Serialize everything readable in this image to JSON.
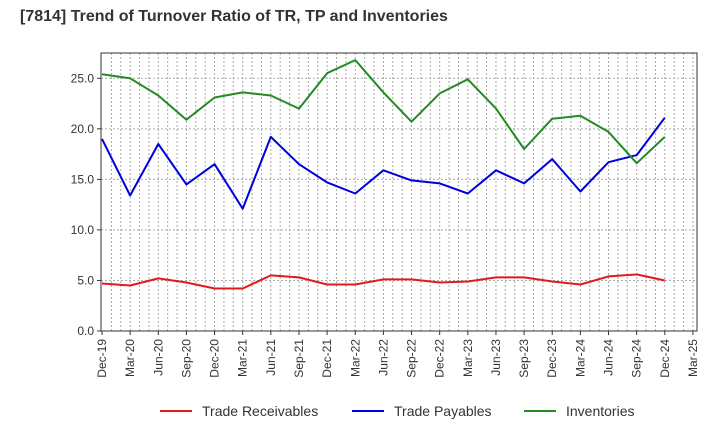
{
  "chart_data": {
    "type": "line",
    "title": "[7814]  Trend of Turnover Ratio of TR, TP and Inventories",
    "xlabel": "",
    "ylabel": "",
    "ylim": [
      0,
      27.5
    ],
    "yticks": [
      "0.0",
      "5.0",
      "10.0",
      "15.0",
      "20.0",
      "25.0"
    ],
    "grid": true,
    "legend": "bottom",
    "x": [
      "Dec-19",
      "Mar-20",
      "Jun-20",
      "Sep-20",
      "Dec-20",
      "Mar-21",
      "Jun-21",
      "Sep-21",
      "Dec-21",
      "Mar-22",
      "Jun-22",
      "Sep-22",
      "Dec-22",
      "Mar-23",
      "Jun-23",
      "Sep-23",
      "Dec-23",
      "Mar-24",
      "Jun-24",
      "Sep-24",
      "Dec-24",
      "Mar-25"
    ],
    "series": [
      {
        "name": "Trade Receivables",
        "color": "#e31a1c",
        "values": [
          4.7,
          4.5,
          5.2,
          4.8,
          4.2,
          4.2,
          5.5,
          5.3,
          4.6,
          4.6,
          5.1,
          5.1,
          4.8,
          4.9,
          5.3,
          5.3,
          4.9,
          4.6,
          5.4,
          5.6,
          5.0,
          null
        ]
      },
      {
        "name": "Trade Payables",
        "color": "#0000dd",
        "values": [
          19.0,
          13.4,
          18.5,
          14.5,
          16.5,
          12.1,
          19.2,
          16.5,
          14.7,
          13.6,
          15.9,
          14.9,
          14.6,
          13.6,
          15.9,
          14.6,
          17.0,
          13.8,
          16.7,
          17.4,
          21.1,
          null
        ]
      },
      {
        "name": "Inventories",
        "color": "#228b22",
        "values": [
          25.4,
          25.0,
          23.3,
          20.9,
          23.1,
          23.6,
          23.3,
          22.0,
          25.5,
          26.8,
          23.6,
          20.7,
          23.5,
          24.9,
          22.0,
          18.0,
          21.0,
          21.3,
          19.7,
          16.6,
          19.2,
          null
        ]
      }
    ]
  }
}
